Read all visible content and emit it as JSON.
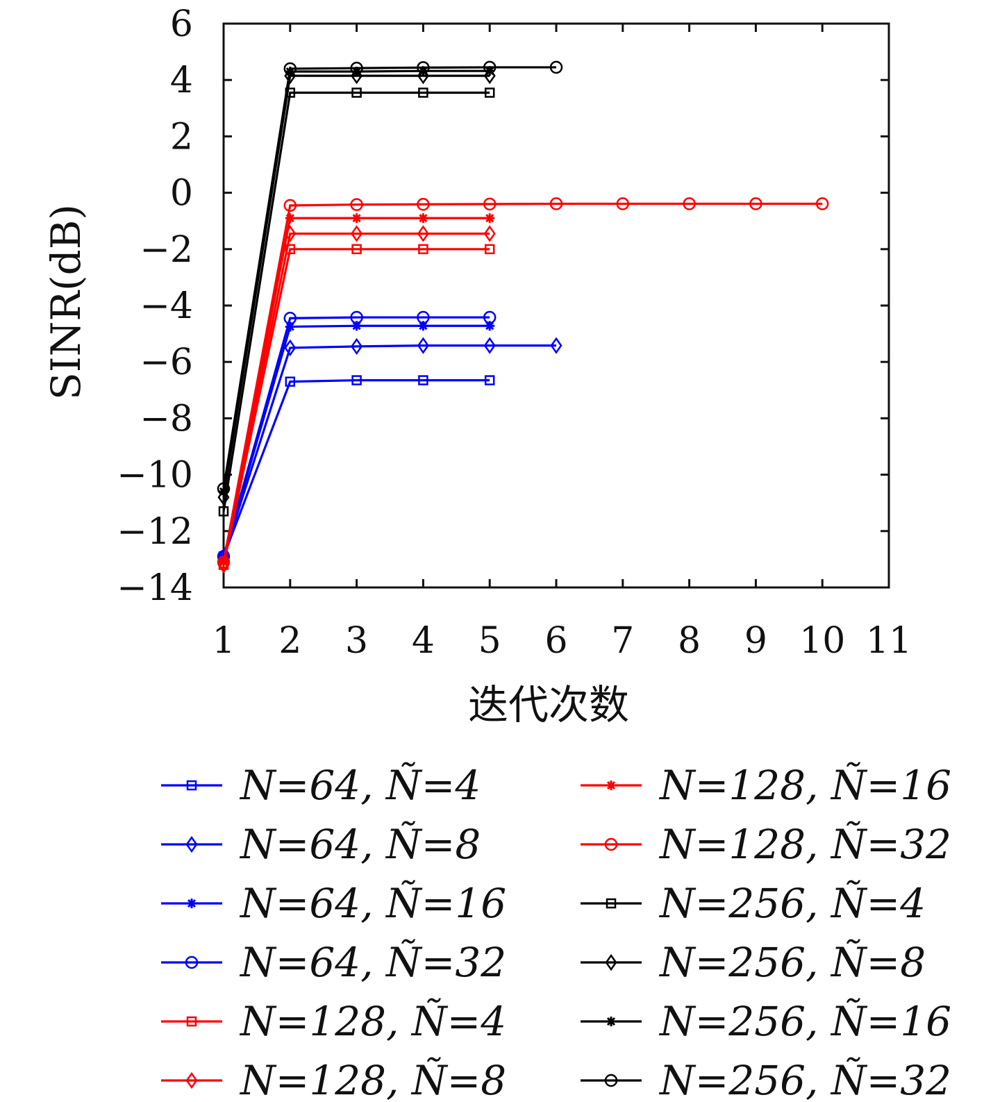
{
  "chart_data": {
    "type": "line",
    "title": "",
    "xlabel": "迭代次数",
    "ylabel": "SINR(dB)",
    "xlim": [
      1,
      11
    ],
    "ylim": [
      -14,
      6
    ],
    "xticks": [
      1,
      2,
      3,
      4,
      5,
      6,
      7,
      8,
      9,
      10,
      11
    ],
    "yticks": [
      6,
      4,
      2,
      0,
      -2,
      -4,
      -6,
      -8,
      -10,
      -12,
      -14
    ],
    "ytick_labels": [
      "6",
      "4",
      "2",
      "0",
      "−2",
      "−4",
      "−6",
      "−8",
      "−10",
      "−12",
      "−14"
    ],
    "grid": false,
    "legend_position": "bottom",
    "series": [
      {
        "name": "N=64, Ñ=4",
        "color": "#0000ff",
        "marker": "square",
        "x": [
          1,
          2,
          3,
          4,
          5
        ],
        "y": [
          -12.9,
          -6.7,
          -6.65,
          -6.65,
          -6.65
        ]
      },
      {
        "name": "N=64, Ñ=8",
        "color": "#0000ff",
        "marker": "diamond",
        "x": [
          1,
          2,
          3,
          4,
          5,
          6
        ],
        "y": [
          -12.9,
          -5.5,
          -5.45,
          -5.42,
          -5.42,
          -5.42
        ]
      },
      {
        "name": "N=64, Ñ=16",
        "color": "#0000ff",
        "marker": "star",
        "x": [
          1,
          2,
          3,
          4,
          5
        ],
        "y": [
          -12.9,
          -4.75,
          -4.72,
          -4.72,
          -4.72
        ]
      },
      {
        "name": "N=64, Ñ=32",
        "color": "#0000ff",
        "marker": "circle",
        "x": [
          1,
          2,
          3,
          4,
          5
        ],
        "y": [
          -12.9,
          -4.45,
          -4.42,
          -4.42,
          -4.42
        ]
      },
      {
        "name": "N=128, Ñ=4",
        "color": "#ff0000",
        "marker": "square",
        "x": [
          1,
          2,
          3,
          4,
          5
        ],
        "y": [
          -13.2,
          -2.0,
          -2.0,
          -2.0,
          -2.0
        ]
      },
      {
        "name": "N=128, Ñ=8",
        "color": "#ff0000",
        "marker": "diamond",
        "x": [
          1,
          2,
          3,
          4,
          5
        ],
        "y": [
          -13.2,
          -1.45,
          -1.45,
          -1.45,
          -1.45
        ]
      },
      {
        "name": "N=128, Ñ=16",
        "color": "#ff0000",
        "marker": "star",
        "x": [
          1,
          2,
          3,
          4,
          5
        ],
        "y": [
          -13.1,
          -0.9,
          -0.9,
          -0.9,
          -0.9
        ]
      },
      {
        "name": "N=128, Ñ=32",
        "color": "#ff0000",
        "marker": "circle",
        "x": [
          1,
          2,
          3,
          4,
          5,
          6,
          7,
          8,
          9,
          10
        ],
        "y": [
          -13.1,
          -0.45,
          -0.42,
          -0.41,
          -0.4,
          -0.39,
          -0.39,
          -0.39,
          -0.39,
          -0.39
        ]
      },
      {
        "name": "N=256, Ñ=4",
        "color": "#000000",
        "marker": "square",
        "x": [
          1,
          2,
          3,
          4,
          5
        ],
        "y": [
          -11.3,
          3.55,
          3.55,
          3.55,
          3.55
        ]
      },
      {
        "name": "N=256, Ñ=8",
        "color": "#000000",
        "marker": "diamond",
        "x": [
          1,
          2,
          3,
          4,
          5
        ],
        "y": [
          -10.8,
          4.15,
          4.15,
          4.15,
          4.15
        ]
      },
      {
        "name": "N=256, Ñ=16",
        "color": "#000000",
        "marker": "star",
        "x": [
          1,
          2,
          3,
          4,
          5
        ],
        "y": [
          -10.6,
          4.3,
          4.3,
          4.32,
          4.32
        ]
      },
      {
        "name": "N=256, Ñ=32",
        "color": "#000000",
        "marker": "circle",
        "x": [
          1,
          2,
          3,
          4,
          5,
          6
        ],
        "y": [
          -10.5,
          4.4,
          4.42,
          4.44,
          4.45,
          4.45
        ]
      }
    ]
  }
}
